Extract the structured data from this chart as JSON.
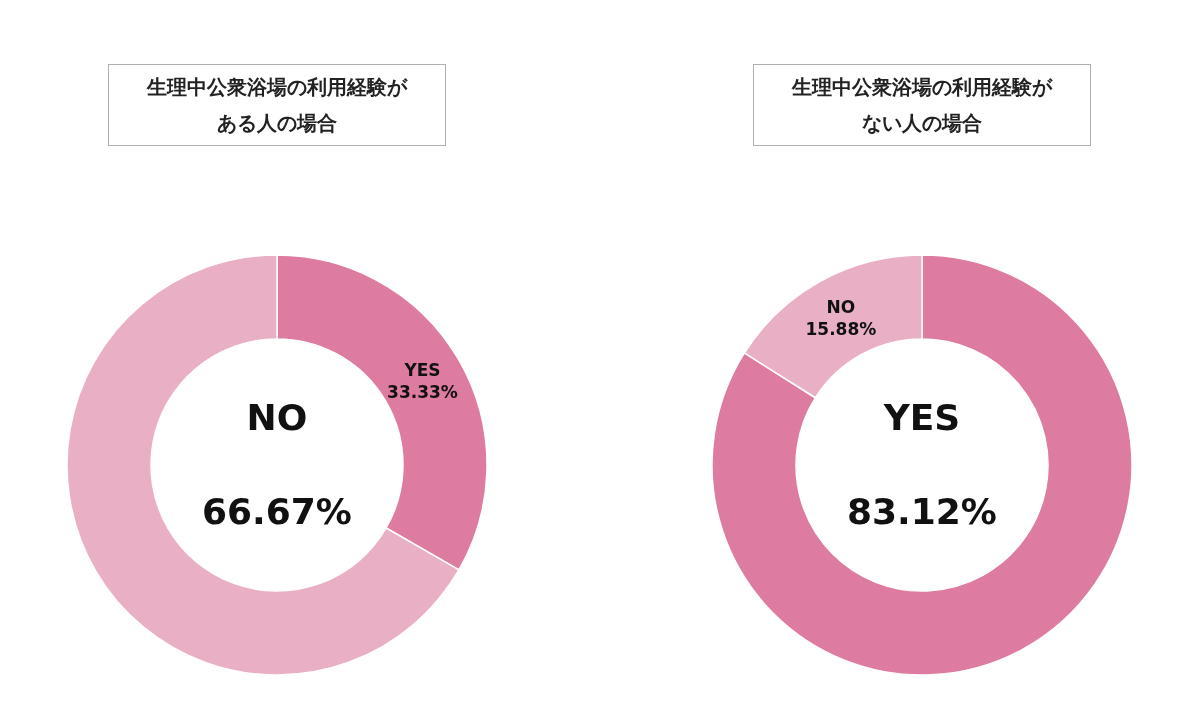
{
  "chart_data": [
    {
      "type": "donut",
      "title": "生理中公衆浴場の利用経験がある人の場合",
      "categories": [
        "YES",
        "NO"
      ],
      "values": [
        33.33,
        66.67
      ],
      "colors": [
        "#dd7ba0",
        "#e8afc5"
      ],
      "value_labels": [
        "33.33%",
        "66.67%"
      ],
      "legend": false
    },
    {
      "type": "donut",
      "title": "生理中公衆浴場の利用経験がない人の場合",
      "categories": [
        "YES",
        "NO"
      ],
      "values": [
        83.12,
        15.88
      ],
      "colors": [
        "#dd7ba0",
        "#e8afc5"
      ],
      "value_labels": [
        "83.12%",
        "15.88%"
      ],
      "legend": false
    }
  ]
}
